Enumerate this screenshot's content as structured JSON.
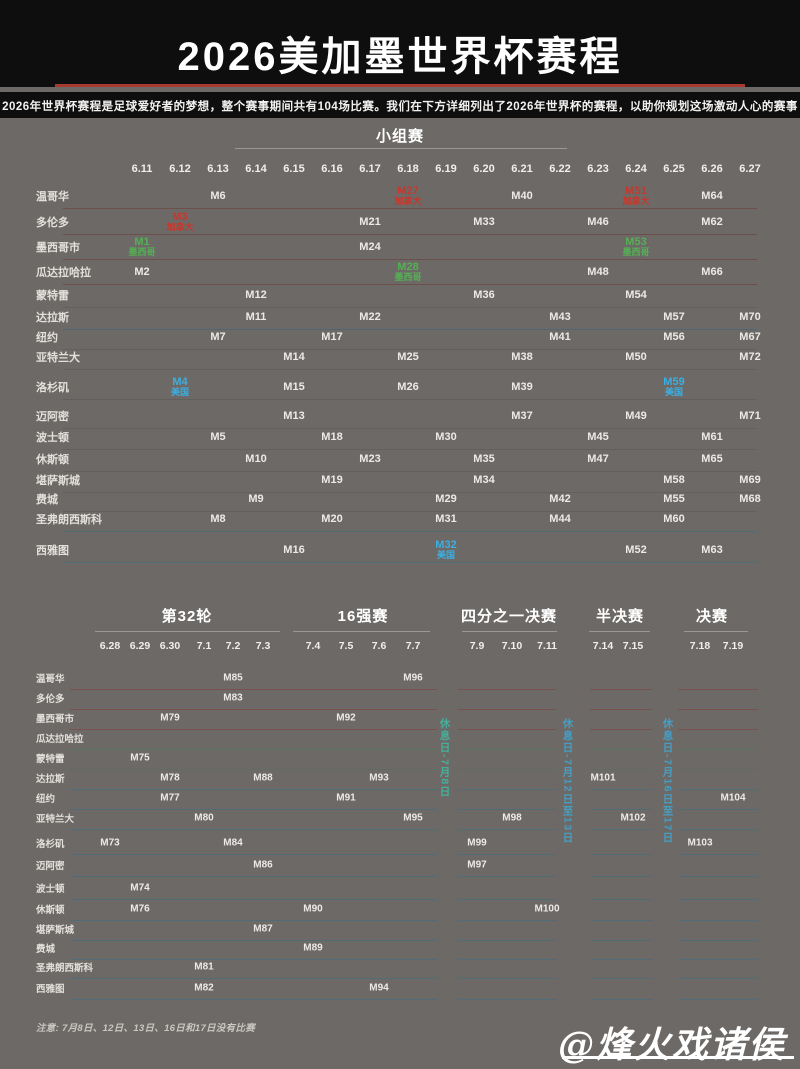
{
  "page": {
    "title": "2026美加墨世界杯赛程",
    "subtitle": "2026年世界杯赛程是足球爱好者的梦想，整个赛事期间共有104场比赛。我们在下方详细列出了2026年世界杯的赛程，以助你规划这场激动人心的赛事",
    "note": "注意: 7月8日、12日、13日、16日和17日没有比赛",
    "watermark": "@烽火戏诸侯"
  },
  "colors": {
    "accent_red": "#c4392e",
    "accent_green": "#55b054",
    "accent_blue": "#3bafe2",
    "rest_teal_green": "#45b09a",
    "rest_teal_blue": "#459fc4",
    "title_rule_red": "#a63a30"
  },
  "cities": [
    "温哥华",
    "多伦多",
    "墨西哥市",
    "瓜达拉哈拉",
    "蒙特雷",
    "达拉斯",
    "纽约",
    "亚特兰大",
    "洛杉矶",
    "迈阿密",
    "波士顿",
    "休斯顿",
    "堪萨斯城",
    "费城",
    "圣弗朗西斯科",
    "西雅图"
  ],
  "group_stage": {
    "header": "小组赛",
    "dates": [
      "6.11",
      "6.12",
      "6.13",
      "6.14",
      "6.15",
      "6.16",
      "6.17",
      "6.18",
      "6.19",
      "6.20",
      "6.21",
      "6.22",
      "6.23",
      "6.24",
      "6.25",
      "6.26",
      "6.27"
    ],
    "matches": [
      {
        "city": "墨西哥市",
        "date": "6.11",
        "label": "M1",
        "tag": "墨西哥",
        "color": "green"
      },
      {
        "city": "瓜达拉哈拉",
        "date": "6.11",
        "label": "M2"
      },
      {
        "city": "多伦多",
        "date": "6.12",
        "label": "M3",
        "tag": "加拿大",
        "color": "red"
      },
      {
        "city": "洛杉矶",
        "date": "6.12",
        "label": "M4",
        "tag": "美国",
        "color": "blue"
      },
      {
        "city": "波士顿",
        "date": "6.13",
        "label": "M5"
      },
      {
        "city": "温哥华",
        "date": "6.13",
        "label": "M6"
      },
      {
        "city": "纽约",
        "date": "6.13",
        "label": "M7"
      },
      {
        "city": "圣弗朗西斯科",
        "date": "6.13",
        "label": "M8"
      },
      {
        "city": "费城",
        "date": "6.14",
        "label": "M9"
      },
      {
        "city": "休斯顿",
        "date": "6.14",
        "label": "M10"
      },
      {
        "city": "达拉斯",
        "date": "6.14",
        "label": "M11"
      },
      {
        "city": "蒙特雷",
        "date": "6.14",
        "label": "M12"
      },
      {
        "city": "迈阿密",
        "date": "6.15",
        "label": "M13"
      },
      {
        "city": "亚特兰大",
        "date": "6.15",
        "label": "M14"
      },
      {
        "city": "洛杉矶",
        "date": "6.15",
        "label": "M15"
      },
      {
        "city": "西雅图",
        "date": "6.15",
        "label": "M16"
      },
      {
        "city": "纽约",
        "date": "6.16",
        "label": "M17"
      },
      {
        "city": "波士顿",
        "date": "6.16",
        "label": "M18"
      },
      {
        "city": "堪萨斯城",
        "date": "6.16",
        "label": "M19"
      },
      {
        "city": "圣弗朗西斯科",
        "date": "6.16",
        "label": "M20"
      },
      {
        "city": "多伦多",
        "date": "6.17",
        "label": "M21"
      },
      {
        "city": "达拉斯",
        "date": "6.17",
        "label": "M22"
      },
      {
        "city": "休斯顿",
        "date": "6.17",
        "label": "M23"
      },
      {
        "city": "墨西哥市",
        "date": "6.17",
        "label": "M24"
      },
      {
        "city": "亚特兰大",
        "date": "6.18",
        "label": "M25"
      },
      {
        "city": "洛杉矶",
        "date": "6.18",
        "label": "M26"
      },
      {
        "city": "温哥华",
        "date": "6.18",
        "label": "M27",
        "tag": "加拿大",
        "color": "red"
      },
      {
        "city": "瓜达拉哈拉",
        "date": "6.18",
        "label": "M28",
        "tag": "墨西哥",
        "color": "green"
      },
      {
        "city": "费城",
        "date": "6.19",
        "label": "M29"
      },
      {
        "city": "波士顿",
        "date": "6.19",
        "label": "M30"
      },
      {
        "city": "圣弗朗西斯科",
        "date": "6.19",
        "label": "M31"
      },
      {
        "city": "西雅图",
        "date": "6.19",
        "label": "M32",
        "tag": "美国",
        "color": "blue"
      },
      {
        "city": "多伦多",
        "date": "6.20",
        "label": "M33"
      },
      {
        "city": "堪萨斯城",
        "date": "6.20",
        "label": "M34"
      },
      {
        "city": "休斯顿",
        "date": "6.20",
        "label": "M35"
      },
      {
        "city": "蒙特雷",
        "date": "6.20",
        "label": "M36"
      },
      {
        "city": "迈阿密",
        "date": "6.21",
        "label": "M37"
      },
      {
        "city": "亚特兰大",
        "date": "6.21",
        "label": "M38"
      },
      {
        "city": "洛杉矶",
        "date": "6.21",
        "label": "M39"
      },
      {
        "city": "温哥华",
        "date": "6.21",
        "label": "M40"
      },
      {
        "city": "纽约",
        "date": "6.22",
        "label": "M41"
      },
      {
        "city": "费城",
        "date": "6.22",
        "label": "M42"
      },
      {
        "city": "达拉斯",
        "date": "6.22",
        "label": "M43"
      },
      {
        "city": "圣弗朗西斯科",
        "date": "6.22",
        "label": "M44"
      },
      {
        "city": "波士顿",
        "date": "6.23",
        "label": "M45"
      },
      {
        "city": "多伦多",
        "date": "6.23",
        "label": "M46"
      },
      {
        "city": "休斯顿",
        "date": "6.23",
        "label": "M47"
      },
      {
        "city": "瓜达拉哈拉",
        "date": "6.23",
        "label": "M48"
      },
      {
        "city": "迈阿密",
        "date": "6.24",
        "label": "M49"
      },
      {
        "city": "亚特兰大",
        "date": "6.24",
        "label": "M50"
      },
      {
        "city": "温哥华",
        "date": "6.24",
        "label": "M51",
        "tag": "加拿大",
        "color": "red"
      },
      {
        "city": "西雅图",
        "date": "6.24",
        "label": "M52"
      },
      {
        "city": "墨西哥市",
        "date": "6.24",
        "label": "M53",
        "tag": "墨西哥",
        "color": "green"
      },
      {
        "city": "蒙特雷",
        "date": "6.24",
        "label": "M54"
      },
      {
        "city": "费城",
        "date": "6.25",
        "label": "M55"
      },
      {
        "city": "纽约",
        "date": "6.25",
        "label": "M56"
      },
      {
        "city": "达拉斯",
        "date": "6.25",
        "label": "M57"
      },
      {
        "city": "堪萨斯城",
        "date": "6.25",
        "label": "M58"
      },
      {
        "city": "洛杉矶",
        "date": "6.25",
        "label": "M59",
        "tag": "美国",
        "color": "blue"
      },
      {
        "city": "圣弗朗西斯科",
        "date": "6.25",
        "label": "M60"
      },
      {
        "city": "波士顿",
        "date": "6.26",
        "label": "M61"
      },
      {
        "city": "多伦多",
        "date": "6.26",
        "label": "M62"
      },
      {
        "city": "西雅图",
        "date": "6.26",
        "label": "M63"
      },
      {
        "city": "温哥华",
        "date": "6.26",
        "label": "M64"
      },
      {
        "city": "休斯顿",
        "date": "6.26",
        "label": "M65"
      },
      {
        "city": "瓜达拉哈拉",
        "date": "6.26",
        "label": "M66"
      },
      {
        "city": "纽约",
        "date": "6.27",
        "label": "M67"
      },
      {
        "city": "费城",
        "date": "6.27",
        "label": "M68"
      },
      {
        "city": "堪萨斯城",
        "date": "6.27",
        "label": "M69"
      },
      {
        "city": "达拉斯",
        "date": "6.27",
        "label": "M70"
      },
      {
        "city": "迈阿密",
        "date": "6.27",
        "label": "M71"
      },
      {
        "city": "亚特兰大",
        "date": "6.27",
        "label": "M72"
      }
    ]
  },
  "knockout": {
    "sections": [
      {
        "title": "第32轮",
        "dates": [
          "6.28",
          "6.29",
          "6.30",
          "7.1",
          "7.2",
          "7.3"
        ]
      },
      {
        "title": "16强赛",
        "dates": [
          "7.4",
          "7.5",
          "7.6",
          "7.7"
        ]
      },
      {
        "title": "四分之一决赛",
        "dates": [
          "7.9",
          "7.10",
          "7.11"
        ]
      },
      {
        "title": "半决赛",
        "dates": [
          "7.14",
          "7.15"
        ]
      },
      {
        "title": "决赛",
        "dates": [
          "7.18",
          "7.19"
        ]
      }
    ],
    "rest_labels": [
      {
        "text": "休息日-7月8日",
        "color": "rest_teal_green"
      },
      {
        "text": "休息日-7月12日至13日",
        "color": "rest_teal_blue"
      },
      {
        "text": "休息日-7月16日至17日",
        "color": "rest_teal_blue"
      }
    ],
    "matches": [
      {
        "city": "洛杉矶",
        "date": "6.28",
        "label": "M73"
      },
      {
        "city": "波士顿",
        "date": "6.29",
        "label": "M74"
      },
      {
        "city": "蒙特雷",
        "date": "6.29",
        "label": "M75"
      },
      {
        "city": "休斯顿",
        "date": "6.29",
        "label": "M76"
      },
      {
        "city": "纽约",
        "date": "6.30",
        "label": "M77"
      },
      {
        "city": "达拉斯",
        "date": "6.30",
        "label": "M78"
      },
      {
        "city": "墨西哥市",
        "date": "6.30",
        "label": "M79"
      },
      {
        "city": "亚特兰大",
        "date": "7.1",
        "label": "M80"
      },
      {
        "city": "圣弗朗西斯科",
        "date": "7.1",
        "label": "M81"
      },
      {
        "city": "西雅图",
        "date": "7.1",
        "label": "M82"
      },
      {
        "city": "多伦多",
        "date": "7.2",
        "label": "M83"
      },
      {
        "city": "洛杉矶",
        "date": "7.2",
        "label": "M84"
      },
      {
        "city": "温哥华",
        "date": "7.2",
        "label": "M85"
      },
      {
        "city": "迈阿密",
        "date": "7.3",
        "label": "M86"
      },
      {
        "city": "堪萨斯城",
        "date": "7.3",
        "label": "M87"
      },
      {
        "city": "达拉斯",
        "date": "7.3",
        "label": "M88"
      },
      {
        "city": "费城",
        "date": "7.4",
        "label": "M89"
      },
      {
        "city": "休斯顿",
        "date": "7.4",
        "label": "M90"
      },
      {
        "city": "纽约",
        "date": "7.5",
        "label": "M91"
      },
      {
        "city": "墨西哥市",
        "date": "7.5",
        "label": "M92"
      },
      {
        "city": "达拉斯",
        "date": "7.6",
        "label": "M93"
      },
      {
        "city": "西雅图",
        "date": "7.6",
        "label": "M94"
      },
      {
        "city": "亚特兰大",
        "date": "7.7",
        "label": "M95"
      },
      {
        "city": "温哥华",
        "date": "7.7",
        "label": "M96"
      },
      {
        "city": "迈阿密",
        "date": "7.9",
        "label": "M97"
      },
      {
        "city": "洛杉矶",
        "date": "7.9",
        "label": "M99"
      },
      {
        "city": "亚特兰大",
        "date": "7.10",
        "label": "M98"
      },
      {
        "city": "休斯顿",
        "date": "7.11",
        "label": "M100"
      },
      {
        "city": "达拉斯",
        "date": "7.14",
        "label": "M101"
      },
      {
        "city": "亚特兰大",
        "date": "7.15",
        "label": "M102"
      },
      {
        "city": "洛杉矶",
        "date": "7.18",
        "label": "M103"
      },
      {
        "city": "纽约",
        "date": "7.19",
        "label": "M104"
      }
    ]
  },
  "chart_data": {
    "type": "table",
    "title": "2026美加墨世界杯赛程",
    "sections": [
      "小组赛",
      "第32轮",
      "16强赛",
      "四分之一决赛",
      "半决赛",
      "决赛"
    ],
    "group_stage_days": 17,
    "total_matches": 104,
    "highlight_legend": {
      "绿色": "墨西哥",
      "红色": "加拿大",
      "蓝色": "美国"
    }
  }
}
